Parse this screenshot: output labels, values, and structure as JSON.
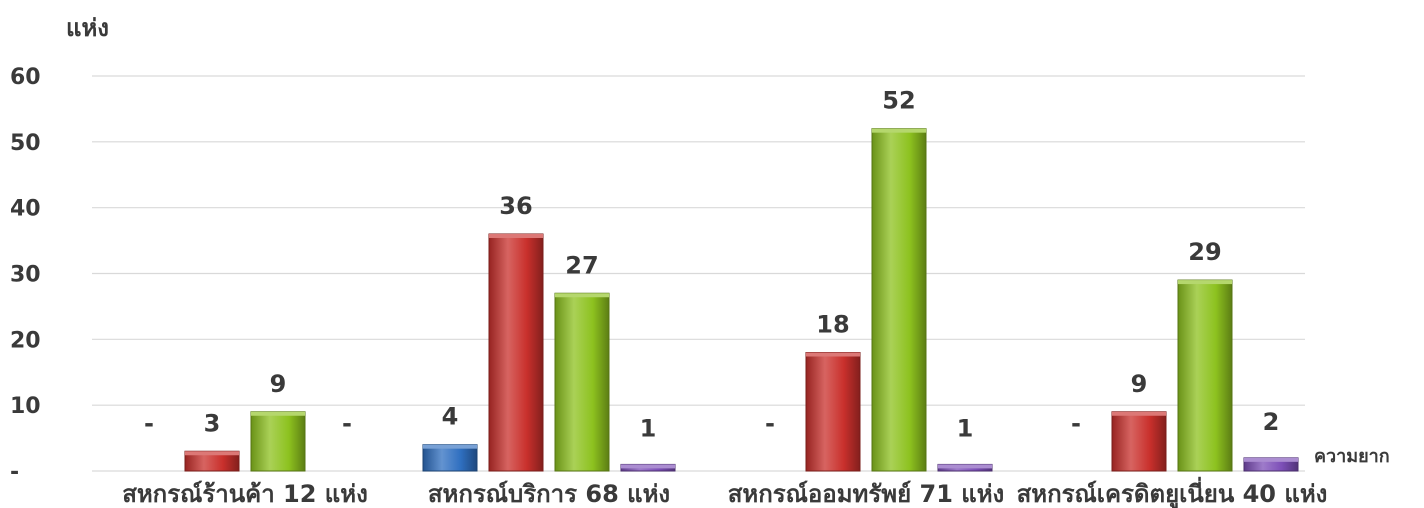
{
  "chart_data": {
    "type": "bar",
    "ylabel": "แห่ง",
    "xlabel": "ความยาก",
    "ylim": [
      0,
      60
    ],
    "yticks": [
      {
        "value": 0,
        "label": "-"
      },
      {
        "value": 10,
        "label": "10"
      },
      {
        "value": 20,
        "label": "20"
      },
      {
        "value": 30,
        "label": "30"
      },
      {
        "value": 40,
        "label": "40"
      },
      {
        "value": 50,
        "label": "50"
      },
      {
        "value": 60,
        "label": "60"
      }
    ],
    "grid": true,
    "categories": [
      "สหกรณ์ร้านค้า 12 แห่ง",
      "สหกรณ์บริการ 68 แห่ง",
      "สหกรณ์ออมทรัพย์ 71 แห่ง",
      "สหกรณ์เครดิตยูเนี่ยน 40 แห่ง"
    ],
    "series": [
      {
        "color": "#2f6fc0",
        "values": [
          0,
          4,
          0,
          0
        ],
        "labels": [
          "-",
          "4",
          "-",
          "-"
        ]
      },
      {
        "color": "#c9302c",
        "values": [
          3,
          36,
          18,
          9
        ],
        "labels": [
          "3",
          "36",
          "18",
          "9"
        ]
      },
      {
        "color": "#8dc21f",
        "values": [
          9,
          27,
          52,
          29
        ],
        "labels": [
          "9",
          "27",
          "52",
          "29"
        ]
      },
      {
        "color": "#7d4fb8",
        "values": [
          0,
          1,
          1,
          2
        ],
        "labels": [
          "-",
          "1",
          "1",
          "2"
        ]
      }
    ]
  }
}
